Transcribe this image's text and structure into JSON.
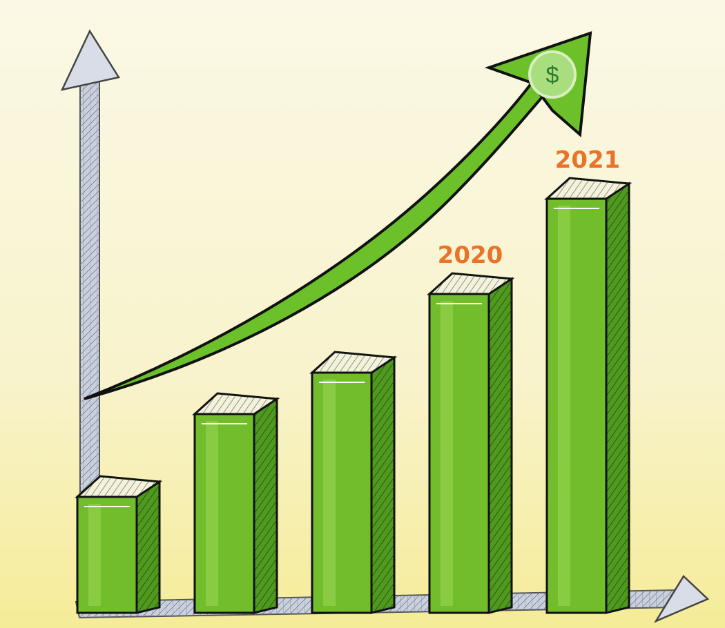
{
  "chart_data": {
    "type": "bar",
    "categories": [
      null,
      null,
      null,
      "2020",
      "2021"
    ],
    "values": [
      28,
      48,
      58,
      77,
      100
    ],
    "color": "#72bd2c",
    "ylim": [
      0,
      130
    ]
  }
}
